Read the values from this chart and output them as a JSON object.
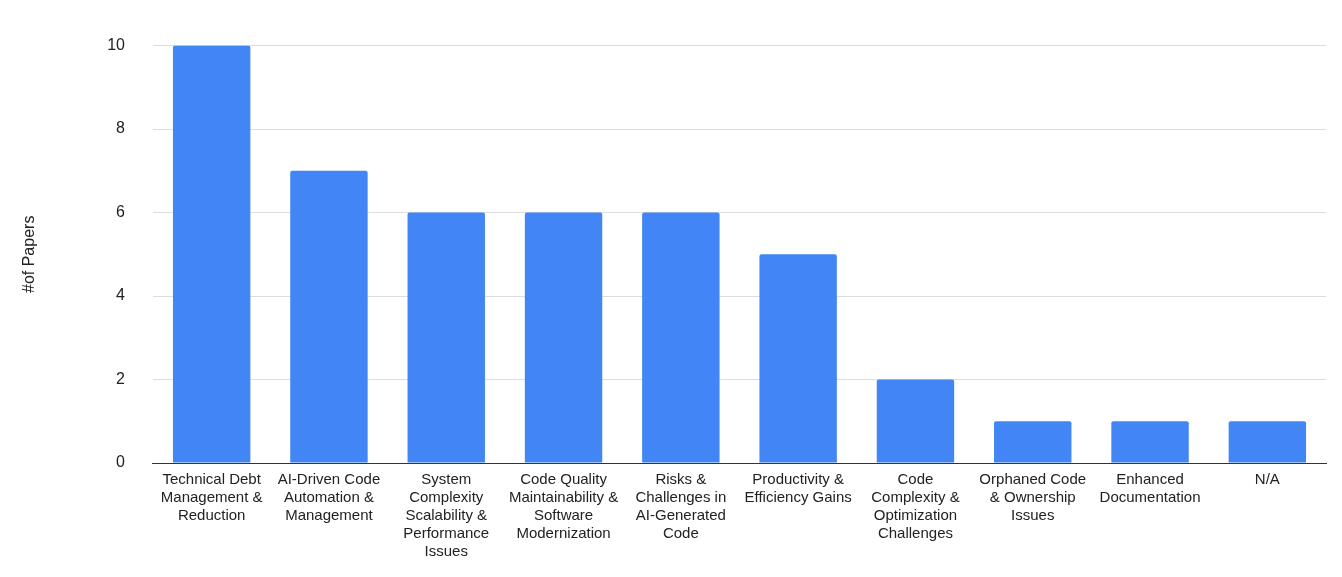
{
  "chart_data": {
    "type": "bar",
    "ylabel": "#of Papers",
    "categories": [
      "Technical Debt Management & Reduction",
      "AI-Driven Code Automation & Management",
      "System Complexity Scalability & Performance Issues",
      "Code Quality Maintainability & Software Modernization",
      "Risks & Challenges in AI-Generated Code",
      "Productivity & Efficiency Gains",
      "Code Complexity & Optimization Challenges",
      "Orphaned Code & Ownership Issues",
      "Enhanced Documentation",
      "N/A"
    ],
    "values": [
      10,
      7,
      6,
      6,
      6,
      5,
      2,
      1,
      1,
      1
    ],
    "color": "#4285f4",
    "ylim": [
      0,
      10
    ],
    "yticks": [
      0,
      2,
      4,
      6,
      8,
      10
    ],
    "grid": "y",
    "legend": false
  }
}
